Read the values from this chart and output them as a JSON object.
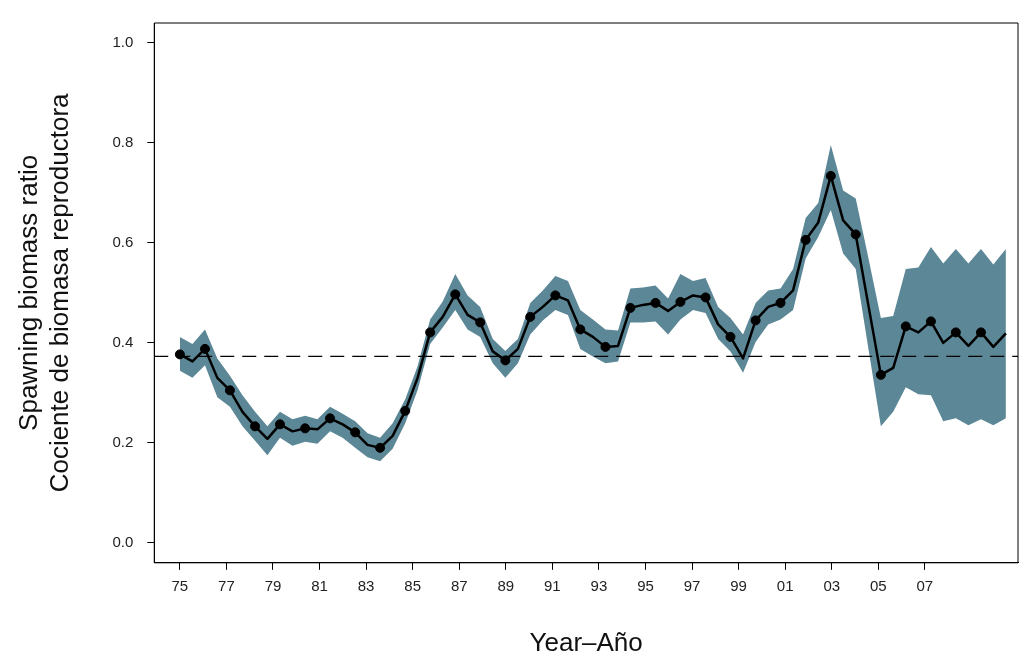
{
  "chart_data": {
    "type": "line",
    "xlabel": "Year–Año",
    "ylabel": "Spawning biomass ratio\nCociente de biomasa reproductora",
    "xlim": [
      1973.9,
      2011
    ],
    "ylim": [
      -0.04,
      1.04
    ],
    "xticks": [
      {
        "value": 1975,
        "label": "75"
      },
      {
        "value": 1977,
        "label": "77"
      },
      {
        "value": 1979,
        "label": "79"
      },
      {
        "value": 1981,
        "label": "81"
      },
      {
        "value": 1983,
        "label": "83"
      },
      {
        "value": 1985,
        "label": "85"
      },
      {
        "value": 1987,
        "label": "87"
      },
      {
        "value": 1989,
        "label": "89"
      },
      {
        "value": 1991,
        "label": "91"
      },
      {
        "value": 1993,
        "label": "93"
      },
      {
        "value": 1995,
        "label": "95"
      },
      {
        "value": 1997,
        "label": "97"
      },
      {
        "value": 1999,
        "label": "99"
      },
      {
        "value": 2001,
        "label": "01"
      },
      {
        "value": 2003,
        "label": "03"
      },
      {
        "value": 2005,
        "label": "05"
      },
      {
        "value": 2007,
        "label": "07"
      }
    ],
    "yticks": [
      {
        "value": 0,
        "label": "0.0"
      },
      0.2,
      0.4,
      0.6,
      0.8,
      {
        "value": 1,
        "label": "1.0"
      }
    ],
    "grid": false,
    "legend": false,
    "ref_lines": [
      {
        "axis": "y",
        "value": 0.373,
        "color": "#000000",
        "line_style": "dashed"
      }
    ],
    "series": [
      {
        "color": "#000000",
        "marker": "none",
        "line_style": "solid",
        "x": [
          1975,
          1975.54,
          1976.08,
          1976.61,
          1977.15,
          1977.69,
          1978.23,
          1978.76,
          1979.3,
          1979.84,
          1980.38,
          1980.91,
          1981.45,
          1981.99,
          1982.53,
          1983.06,
          1983.6,
          1984.14,
          1984.68,
          1985.21,
          1985.75,
          1986.29,
          1986.83,
          1987.36,
          1987.9,
          1988.44,
          1988.98,
          1989.52,
          1990.05,
          1990.59,
          1991.13,
          1991.67,
          1992.2,
          1992.74,
          1993.28,
          1993.82,
          1994.35,
          1994.89,
          1995.43,
          1995.97,
          1996.5,
          1997.04,
          1997.58,
          1998.12,
          1998.65,
          1999.19,
          1999.73,
          2000.27,
          2000.8,
          2001.34,
          2001.88,
          2002.42,
          2002.96,
          2003.49,
          2004.03,
          2004.57,
          2005.11,
          2005.64,
          2006.18,
          2006.72,
          2007.26,
          2007.79,
          2008.33,
          2008.87,
          2009.41,
          2009.94,
          2010.48
        ],
        "values": [
          0.377,
          0.363,
          0.388,
          0.33,
          0.305,
          0.262,
          0.233,
          0.208,
          0.237,
          0.223,
          0.229,
          0.227,
          0.249,
          0.237,
          0.221,
          0.196,
          0.19,
          0.214,
          0.264,
          0.33,
          0.421,
          0.452,
          0.497,
          0.456,
          0.441,
          0.383,
          0.365,
          0.388,
          0.452,
          0.472,
          0.495,
          0.485,
          0.427,
          0.412,
          0.392,
          0.394,
          0.47,
          0.476,
          0.48,
          0.464,
          0.482,
          0.495,
          0.491,
          0.437,
          0.412,
          0.369,
          0.445,
          0.472,
          0.48,
          0.505,
          0.606,
          0.641,
          0.734,
          0.645,
          0.617,
          0.476,
          0.336,
          0.35,
          0.433,
          0.421,
          0.443,
          0.4,
          0.421,
          0.394,
          0.421,
          0.392,
          0.419
        ],
        "upper": [
          0.412,
          0.398,
          0.427,
          0.369,
          0.334,
          0.295,
          0.262,
          0.233,
          0.262,
          0.247,
          0.254,
          0.247,
          0.272,
          0.258,
          0.243,
          0.219,
          0.21,
          0.239,
          0.287,
          0.353,
          0.447,
          0.483,
          0.538,
          0.495,
          0.472,
          0.408,
          0.384,
          0.408,
          0.48,
          0.505,
          0.534,
          0.524,
          0.466,
          0.447,
          0.427,
          0.425,
          0.509,
          0.511,
          0.515,
          0.489,
          0.538,
          0.524,
          0.53,
          0.472,
          0.45,
          0.417,
          0.48,
          0.505,
          0.509,
          0.548,
          0.65,
          0.68,
          0.796,
          0.705,
          0.689,
          0.571,
          0.45,
          0.454,
          0.548,
          0.551,
          0.592,
          0.559,
          0.588,
          0.559,
          0.588,
          0.557,
          0.588
        ],
        "lower": [
          0.344,
          0.33,
          0.355,
          0.291,
          0.272,
          0.233,
          0.204,
          0.175,
          0.21,
          0.194,
          0.202,
          0.198,
          0.223,
          0.21,
          0.19,
          0.171,
          0.163,
          0.188,
          0.239,
          0.305,
          0.398,
          0.431,
          0.466,
          0.427,
          0.412,
          0.359,
          0.33,
          0.359,
          0.417,
          0.445,
          0.466,
          0.456,
          0.388,
          0.373,
          0.359,
          0.363,
          0.441,
          0.441,
          0.443,
          0.417,
          0.447,
          0.466,
          0.46,
          0.408,
          0.383,
          0.34,
          0.402,
          0.437,
          0.447,
          0.466,
          0.569,
          0.612,
          0.666,
          0.579,
          0.548,
          0.39,
          0.233,
          0.262,
          0.311,
          0.297,
          0.295,
          0.243,
          0.249,
          0.235,
          0.247,
          0.235,
          0.249
        ]
      },
      {
        "type": "scatter",
        "color": "#000000",
        "marker": "circle",
        "x": [
          1975,
          1976.08,
          1977.15,
          1978.23,
          1979.3,
          1980.38,
          1981.45,
          1982.53,
          1983.6,
          1984.68,
          1985.75,
          1986.83,
          1987.9,
          1988.98,
          1990.05,
          1991.13,
          1992.2,
          1993.28,
          1994.35,
          1995.43,
          1996.5,
          1997.58,
          1998.65,
          1999.73,
          2000.8,
          2001.88,
          2002.96,
          2004.03,
          2005.11,
          2006.18,
          2007.26,
          2008.33,
          2009.41
        ],
        "values": [
          0.377,
          0.388,
          0.305,
          0.233,
          0.237,
          0.229,
          0.249,
          0.221,
          0.19,
          0.264,
          0.421,
          0.497,
          0.441,
          0.365,
          0.452,
          0.495,
          0.427,
          0.392,
          0.47,
          0.48,
          0.482,
          0.491,
          0.412,
          0.445,
          0.48,
          0.606,
          0.734,
          0.617,
          0.336,
          0.433,
          0.443,
          0.421,
          0.421
        ]
      }
    ]
  }
}
